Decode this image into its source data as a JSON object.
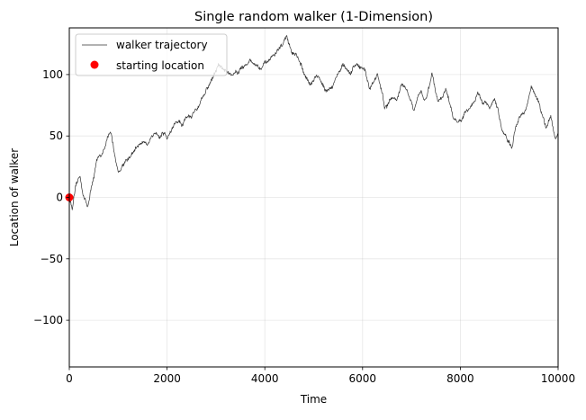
{
  "chart_data": {
    "type": "line",
    "title": "Single random walker (1-Dimension)",
    "xlabel": "Time",
    "ylabel": "Location of walker",
    "xlim": [
      0,
      10000
    ],
    "ylim": [
      -138,
      138
    ],
    "grid": true,
    "legend_placement": "top-left",
    "xticks": [
      0,
      2000,
      4000,
      6000,
      8000,
      10000
    ],
    "yticks": [
      -100,
      -50,
      0,
      50,
      100
    ],
    "xtick_labels": [
      "0",
      "2000",
      "4000",
      "6000",
      "8000",
      "10000"
    ],
    "ytick_labels": [
      "−100",
      "−50",
      "0",
      "50",
      "100"
    ],
    "series": [
      {
        "name": "walker trajectory",
        "color": "#333333",
        "anchors": [
          [
            0,
            0
          ],
          [
            60,
            -9
          ],
          [
            150,
            12
          ],
          [
            220,
            17
          ],
          [
            300,
            0
          ],
          [
            370,
            -8
          ],
          [
            450,
            8
          ],
          [
            560,
            30
          ],
          [
            700,
            38
          ],
          [
            850,
            53
          ],
          [
            1000,
            20
          ],
          [
            1150,
            30
          ],
          [
            1300,
            36
          ],
          [
            1500,
            45
          ],
          [
            1700,
            50
          ],
          [
            1900,
            52
          ],
          [
            2000,
            48
          ],
          [
            2150,
            60
          ],
          [
            2300,
            58
          ],
          [
            2500,
            65
          ],
          [
            2700,
            80
          ],
          [
            2900,
            95
          ],
          [
            3050,
            108
          ],
          [
            3200,
            103
          ],
          [
            3350,
            100
          ],
          [
            3500,
            105
          ],
          [
            3700,
            112
          ],
          [
            3900,
            105
          ],
          [
            4050,
            110
          ],
          [
            4200,
            116
          ],
          [
            4350,
            124
          ],
          [
            4450,
            131
          ],
          [
            4550,
            118
          ],
          [
            4700,
            112
          ],
          [
            4800,
            100
          ],
          [
            4950,
            93
          ],
          [
            5100,
            98
          ],
          [
            5300,
            88
          ],
          [
            5450,
            97
          ],
          [
            5600,
            108
          ],
          [
            5750,
            100
          ],
          [
            5900,
            108
          ],
          [
            6050,
            104
          ],
          [
            6150,
            88
          ],
          [
            6300,
            101
          ],
          [
            6450,
            73
          ],
          [
            6550,
            80
          ],
          [
            6700,
            79
          ],
          [
            6800,
            92
          ],
          [
            6900,
            88
          ],
          [
            7050,
            70
          ],
          [
            7200,
            86
          ],
          [
            7300,
            80
          ],
          [
            7420,
            101
          ],
          [
            7550,
            78
          ],
          [
            7700,
            88
          ],
          [
            7850,
            66
          ],
          [
            7950,
            61
          ],
          [
            8100,
            70
          ],
          [
            8250,
            76
          ],
          [
            8350,
            86
          ],
          [
            8450,
            77
          ],
          [
            8600,
            72
          ],
          [
            8700,
            81
          ],
          [
            8850,
            55
          ],
          [
            8950,
            48
          ],
          [
            9050,
            40
          ],
          [
            9200,
            65
          ],
          [
            9350,
            72
          ],
          [
            9450,
            90
          ],
          [
            9550,
            82
          ],
          [
            9650,
            70
          ],
          [
            9750,
            56
          ],
          [
            9850,
            66
          ],
          [
            9950,
            48
          ],
          [
            10000,
            53
          ]
        ]
      }
    ],
    "points": [
      {
        "name": "starting location",
        "color": "#ff0000",
        "x": 0,
        "y": 0
      }
    ]
  }
}
